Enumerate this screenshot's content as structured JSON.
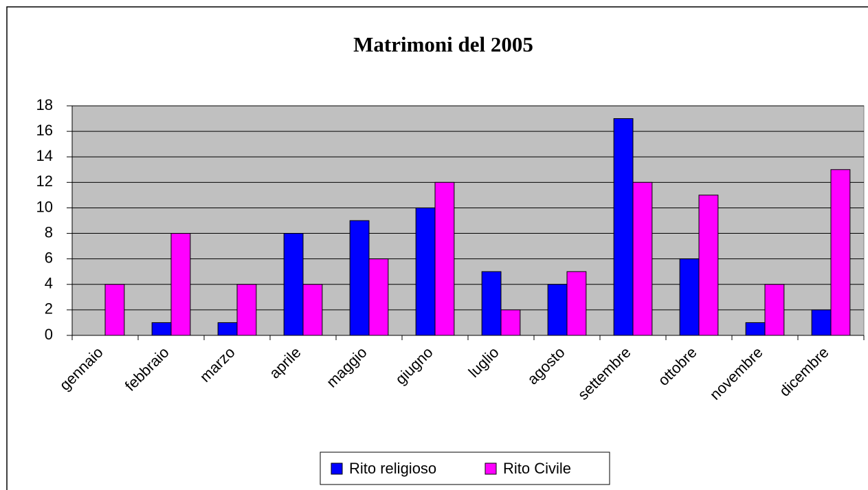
{
  "chart_data": {
    "type": "bar",
    "title": "Matrimoni del 2005",
    "categories": [
      "gennaio",
      "febbraio",
      "marzo",
      "aprile",
      "maggio",
      "giugno",
      "luglio",
      "agosto",
      "settembre",
      "ottobre",
      "novembre",
      "dicembre"
    ],
    "series": [
      {
        "name": "Rito religioso",
        "color": "#0000ff",
        "values": [
          0,
          1,
          1,
          8,
          9,
          10,
          5,
          4,
          17,
          6,
          1,
          2
        ]
      },
      {
        "name": "Rito Civile",
        "color": "#ff00ff",
        "values": [
          4,
          8,
          4,
          4,
          6,
          12,
          2,
          5,
          12,
          11,
          4,
          13
        ]
      }
    ],
    "ylim": [
      0,
      18
    ],
    "yticks": [
      0,
      2,
      4,
      6,
      8,
      10,
      12,
      14,
      16,
      18
    ],
    "grid": true,
    "legend": "bottom"
  }
}
